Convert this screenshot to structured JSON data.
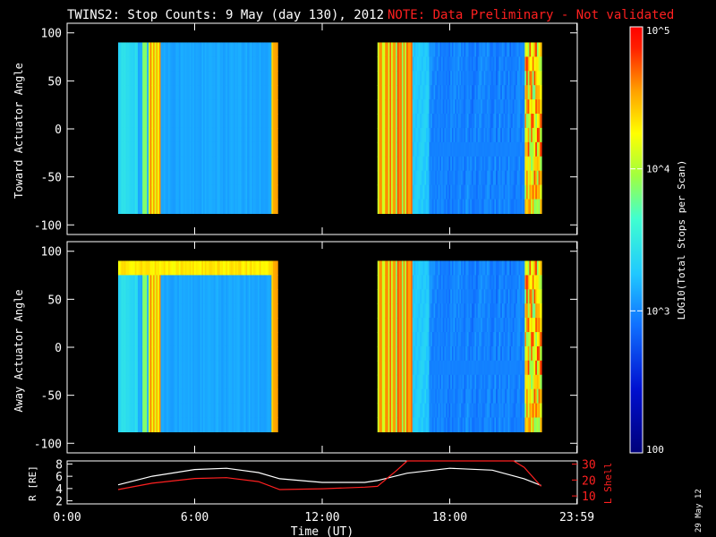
{
  "header": {
    "title": "TWINS2: Stop Counts:  9 May (day 130), 2012",
    "note": "NOTE: Data Preliminary - Not validated"
  },
  "colorbar": {
    "label": "LOG10(Total Stops per Scan)",
    "ticks": [
      "10^5",
      "10^4",
      "10^3",
      "100"
    ],
    "range": [
      100,
      100000
    ],
    "scale": "log"
  },
  "stamp": "29 May 12",
  "chart_data": [
    {
      "type": "heatmap",
      "name": "toward",
      "ylabel": "Toward Actuator Angle",
      "ylim": [
        -110,
        110
      ],
      "y_ticks": [
        100,
        50,
        0,
        -50,
        -100
      ],
      "y_tick_labels": [
        "100",
        "50",
        "0",
        "-50",
        "-100"
      ],
      "xlim": [
        0,
        24
      ],
      "data_coverage_hours": [
        [
          2.4,
          9.9
        ],
        [
          14.6,
          22.3
        ]
      ],
      "angle_range": [
        -88,
        90
      ],
      "z": "log10 stop counts",
      "notes": "High counts (orange/red) bands near 3.8-4.4 h, 9.6 h, 14.6-16.2 h and >21.5 h; background ~10^3 (cyan/blue)"
    },
    {
      "type": "heatmap",
      "name": "away",
      "ylabel": "Away Actuator Angle",
      "ylim": [
        -110,
        110
      ],
      "y_ticks": [
        100,
        50,
        0,
        -50,
        -100
      ],
      "y_tick_labels": [
        "100",
        "50",
        "0",
        "-50",
        "-100"
      ],
      "xlim": [
        0,
        24
      ],
      "data_coverage_hours": [
        [
          2.4,
          9.9
        ],
        [
          14.6,
          22.3
        ]
      ],
      "angle_range": [
        -88,
        90
      ],
      "z": "log10 stop counts",
      "notes": "Yellow/orange ridge near +75 deg from 2.4-9.6 h"
    },
    {
      "type": "line",
      "name": "orbit",
      "ylabel": "R [RE]",
      "y_ticks": [
        8,
        6,
        4,
        2
      ],
      "y_tick_labels": [
        "8",
        "6",
        "4",
        "2"
      ],
      "ylim": [
        1.5,
        8.5
      ],
      "right_ylabel": "L Shell",
      "right_ticks": [
        30,
        20,
        10
      ],
      "right_tick_labels": [
        "30",
        "20",
        "10"
      ],
      "right_ylim": [
        5,
        32
      ],
      "xlabel": "Time (UT)",
      "x_ticks": [
        0,
        6,
        12,
        18,
        23.98
      ],
      "x_tick_labels": [
        "0:00",
        "6:00",
        "12:00",
        "18:00",
        "23:59"
      ],
      "xlim": [
        2.4,
        22.3
      ],
      "series": [
        {
          "color": "#ffffff",
          "x": [
            2.4,
            4,
            6,
            7.5,
            9,
            10,
            12,
            14,
            14.6,
            16,
            18,
            20,
            21.5,
            22.3
          ],
          "y": [
            4.6,
            6.0,
            7.1,
            7.3,
            6.6,
            5.6,
            5.0,
            5.0,
            5.3,
            6.5,
            7.3,
            7.0,
            5.6,
            4.5
          ]
        },
        {
          "axis": "right",
          "color": "#ff2020",
          "x": [
            2.4,
            4,
            6,
            7.5,
            9,
            10,
            12,
            14,
            14.6,
            15.5,
            16.0,
            21.0,
            21.5,
            22.3
          ],
          "y": [
            14,
            18,
            21,
            21.5,
            19,
            14,
            14.5,
            15.5,
            16,
            26,
            32,
            32,
            28,
            16
          ]
        }
      ]
    }
  ]
}
